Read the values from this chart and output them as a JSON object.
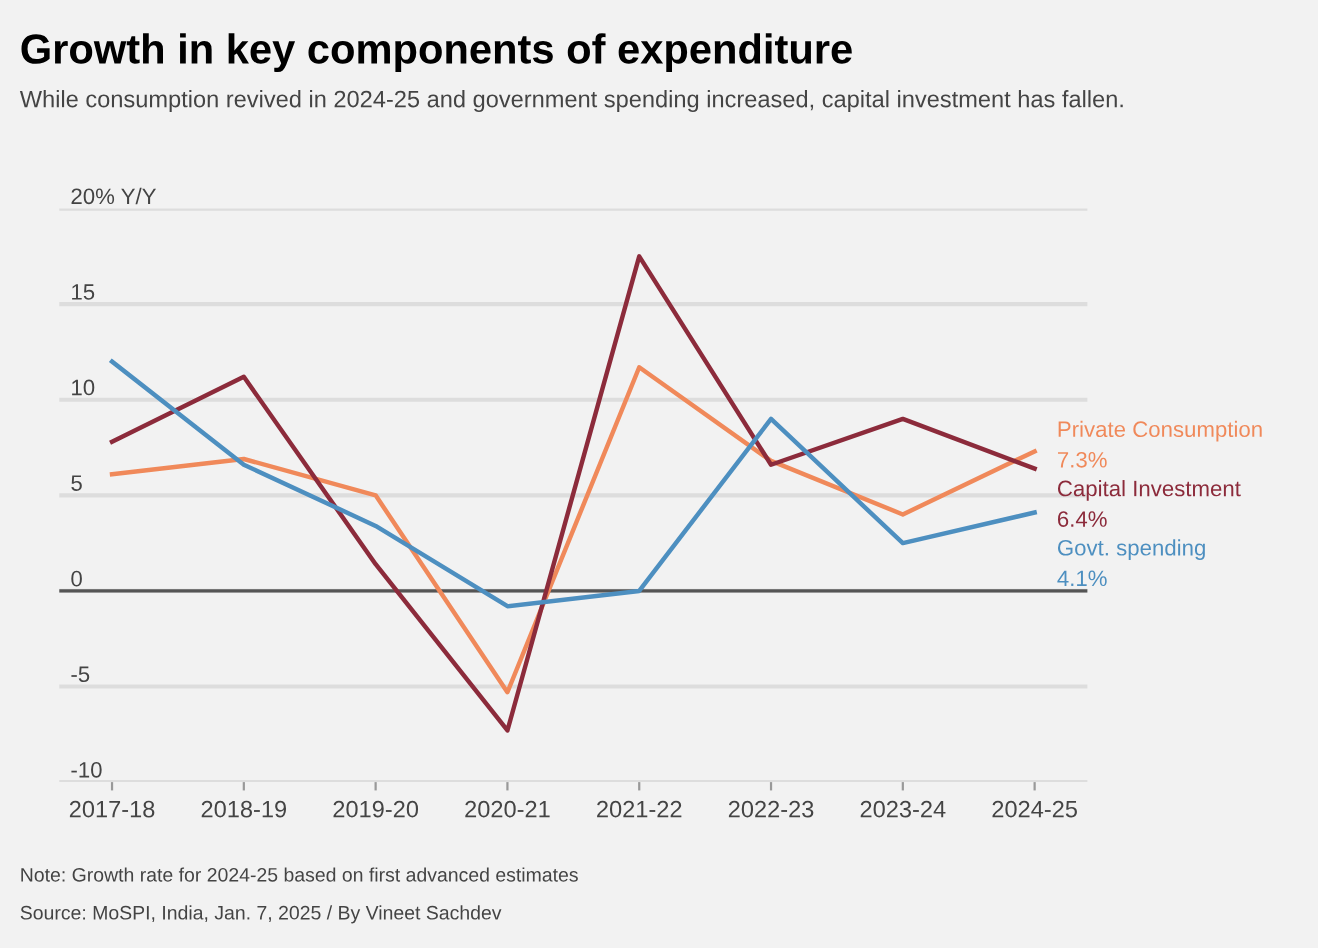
{
  "chart_data": {
    "type": "line",
    "title": "Growth in key components of expenditure",
    "subtitle": "While consumption revived in 2024-25 and government spending increased, capital investment has fallen.",
    "categories": [
      "2017-18",
      "2018-19",
      "2019-20",
      "2020-21",
      "2021-22",
      "2022-23",
      "2023-24",
      "2024-25"
    ],
    "series": [
      {
        "name": "Private Consumption",
        "color": "#f0895a",
        "values": [
          6.1,
          6.9,
          5.0,
          -5.3,
          11.7,
          6.8,
          4.0,
          7.3
        ],
        "value_labels": [
          null,
          null,
          null,
          null,
          null,
          null,
          null,
          "7.3%"
        ]
      },
      {
        "name": "Capital Investment",
        "color": "#8c2b3b",
        "values": [
          7.8,
          11.2,
          1.4,
          -7.3,
          17.5,
          6.6,
          9.0,
          6.4
        ],
        "value_labels": [
          null,
          null,
          null,
          null,
          null,
          null,
          null,
          "6.4%"
        ]
      },
      {
        "name": "Govt. spending",
        "color": "#4d8fc0",
        "values": [
          12.0,
          6.6,
          3.4,
          -0.8,
          0.0,
          9.0,
          2.5,
          4.1
        ],
        "value_labels": [
          null,
          null,
          null,
          null,
          null,
          null,
          null,
          "4.1%"
        ]
      }
    ],
    "ylim": [
      -10,
      20
    ],
    "yticks": [
      {
        "value": -10,
        "label": "-10"
      },
      {
        "value": -5,
        "label": "-5"
      },
      0,
      5,
      10,
      15,
      {
        "value": 20,
        "label": "20% Y/Y"
      }
    ],
    "grid": "y",
    "legend": false,
    "ref_lines": [
      {
        "axis": "y",
        "value": 0,
        "color": "#555555"
      }
    ],
    "annotations": [
      "Note: Growth rate for 2024-25 based on first advanced estimates",
      "Source: MoSPI, India, Jan. 7, 2025 / By Vineet Sachdev"
    ]
  }
}
